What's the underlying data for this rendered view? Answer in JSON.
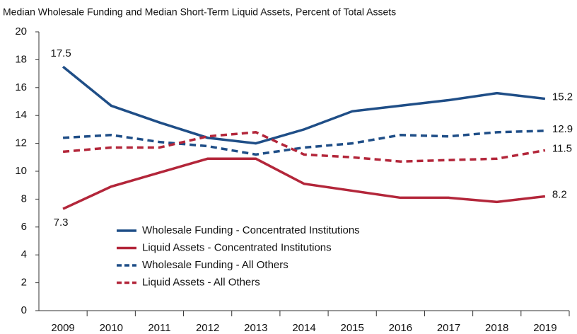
{
  "chart_data": {
    "type": "line",
    "title": "Median Wholesale Funding and Median Short-Term Liquid Assets, Percent of Total Assets",
    "categories": [
      "2009",
      "2010",
      "2011",
      "2012",
      "2013",
      "2014",
      "2015",
      "2016",
      "2017",
      "2018",
      "2019"
    ],
    "series": [
      {
        "name": "Wholesale Funding - Concentrated Institutions",
        "color": "#1f4e87",
        "dashed": false,
        "values": [
          17.5,
          14.7,
          13.5,
          12.4,
          12.0,
          13.0,
          14.3,
          14.7,
          15.1,
          15.6,
          15.2
        ]
      },
      {
        "name": "Liquid Assets - Concentrated Institutions",
        "color": "#b3263a",
        "dashed": false,
        "values": [
          7.3,
          8.9,
          9.9,
          10.9,
          10.9,
          9.1,
          8.6,
          8.1,
          8.1,
          7.8,
          8.2
        ]
      },
      {
        "name": "Wholesale Funding - All Others",
        "color": "#1f4e87",
        "dashed": true,
        "values": [
          12.4,
          12.6,
          12.1,
          11.8,
          11.2,
          11.7,
          12.0,
          12.6,
          12.5,
          12.8,
          12.9
        ]
      },
      {
        "name": "Liquid Assets - All Others",
        "color": "#b3263a",
        "dashed": true,
        "values": [
          11.4,
          11.7,
          11.7,
          12.5,
          12.8,
          11.2,
          11.0,
          10.7,
          10.8,
          10.9,
          11.5
        ]
      }
    ],
    "ylim": [
      0,
      20
    ],
    "yticks": [
      0,
      2,
      4,
      6,
      8,
      10,
      12,
      14,
      16,
      18,
      20
    ],
    "grid": false
  }
}
